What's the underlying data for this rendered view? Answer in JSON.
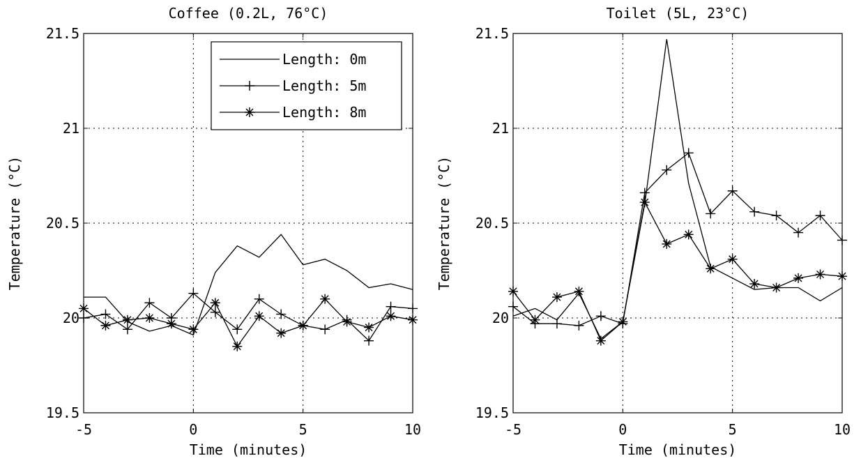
{
  "chart_data": [
    {
      "type": "line",
      "title": "Coffee (0.2L, 76°C)",
      "xlabel": "Time (minutes)",
      "ylabel": "Temperature (°C)",
      "xlim": [
        -5,
        10
      ],
      "ylim": [
        19.5,
        21.5
      ],
      "xticks": [
        -5,
        0,
        5,
        10
      ],
      "yticks": [
        19.5,
        20,
        20.5,
        21,
        21.5
      ],
      "xtick_labels": [
        "-5",
        "0",
        "5",
        "10"
      ],
      "ytick_labels": [
        "19.5",
        "20",
        "20.5",
        "21",
        "21.5"
      ],
      "grid": true,
      "legend": {
        "placement": "top-right"
      },
      "x": [
        -5,
        -4,
        -3,
        -2,
        -1,
        0,
        1,
        2,
        3,
        4,
        5,
        6,
        7,
        8,
        9,
        10
      ],
      "series": [
        {
          "name": "Length: 0m",
          "marker": "none",
          "values": [
            20.11,
            20.11,
            19.98,
            19.93,
            19.96,
            19.91,
            20.24,
            20.38,
            20.32,
            20.44,
            20.28,
            20.31,
            20.25,
            20.16,
            20.18,
            20.15
          ]
        },
        {
          "name": "Length: 5m",
          "marker": "plus",
          "values": [
            20.0,
            20.02,
            19.94,
            20.08,
            20.0,
            20.13,
            20.03,
            19.94,
            20.1,
            20.02,
            19.96,
            19.94,
            19.99,
            19.88,
            20.06,
            20.05
          ]
        },
        {
          "name": "Length: 8m",
          "marker": "star",
          "values": [
            20.05,
            19.96,
            19.99,
            20.0,
            19.97,
            19.94,
            20.08,
            19.85,
            20.01,
            19.92,
            19.96,
            20.1,
            19.98,
            19.95,
            20.01,
            19.99
          ]
        }
      ]
    },
    {
      "type": "line",
      "title": "Toilet (5L, 23°C)",
      "xlabel": "Time (minutes)",
      "ylabel": "Temperature (°C)",
      "xlim": [
        -5,
        10
      ],
      "ylim": [
        19.5,
        21.5
      ],
      "xticks": [
        -5,
        0,
        5,
        10
      ],
      "yticks": [
        19.5,
        20,
        20.5,
        21,
        21.5
      ],
      "xtick_labels": [
        "-5",
        "0",
        "5",
        "10"
      ],
      "ytick_labels": [
        "19.5",
        "20",
        "20.5",
        "21",
        "21.5"
      ],
      "grid": true,
      "x": [
        -5,
        -4,
        -3,
        -2,
        -1,
        0,
        1,
        2,
        3,
        4,
        5,
        6,
        7,
        8,
        9,
        10
      ],
      "series": [
        {
          "name": "Length: 0m",
          "marker": "none",
          "values": [
            20.01,
            20.05,
            19.99,
            20.13,
            19.89,
            19.98,
            20.6,
            21.47,
            20.71,
            20.27,
            20.21,
            20.15,
            20.16,
            20.16,
            20.09,
            20.16
          ]
        },
        {
          "name": "Length: 5m",
          "marker": "plus",
          "values": [
            20.06,
            19.97,
            19.97,
            19.96,
            20.01,
            19.97,
            20.66,
            20.78,
            20.87,
            20.55,
            20.67,
            20.56,
            20.54,
            20.45,
            20.54,
            20.41
          ]
        },
        {
          "name": "Length: 8m",
          "marker": "star",
          "values": [
            20.14,
            19.99,
            20.11,
            20.14,
            19.88,
            19.98,
            20.61,
            20.39,
            20.44,
            20.26,
            20.31,
            20.18,
            20.16,
            20.21,
            20.23,
            20.22
          ]
        }
      ]
    }
  ]
}
